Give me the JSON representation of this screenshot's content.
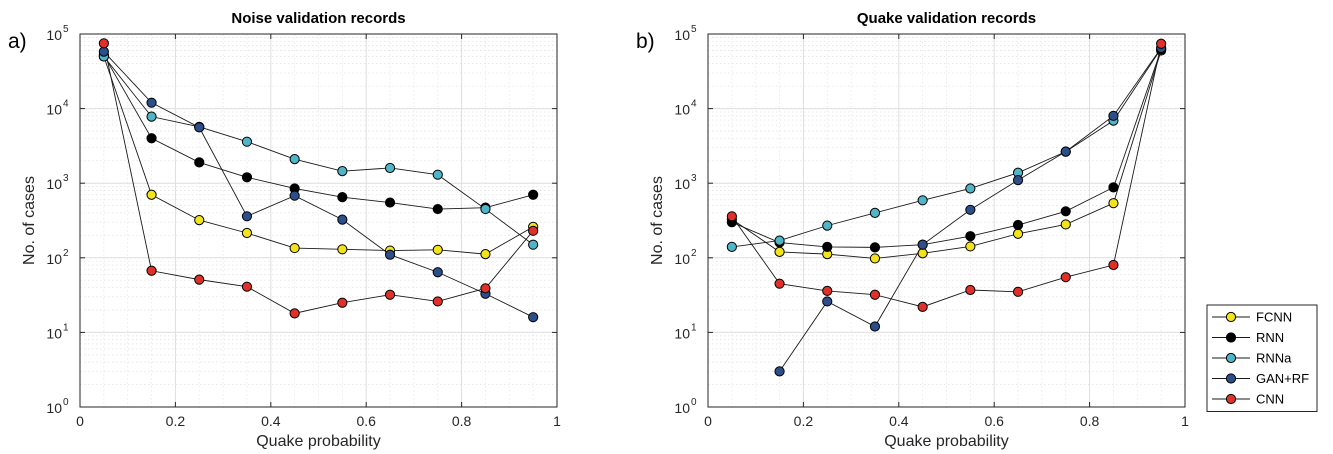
{
  "chart_data": [
    {
      "type": "line",
      "panel_label": "a)",
      "title": "Noise validation records",
      "xlabel": "Quake probability",
      "ylabel": "No. of cases",
      "xlim": [
        0,
        1
      ],
      "ylim": [
        1,
        100000
      ],
      "yscale": "log",
      "grid": true,
      "x": [
        0.05,
        0.15,
        0.25,
        0.35,
        0.45,
        0.55,
        0.65,
        0.75,
        0.85,
        0.95
      ],
      "series": [
        {
          "name": "FCNN",
          "color": "#f2e31a",
          "values": [
            50000,
            700,
            320,
            215,
            135,
            130,
            125,
            128,
            112,
            260
          ]
        },
        {
          "name": "RNN",
          "color": "#000000",
          "values": [
            52000,
            4000,
            1900,
            1200,
            850,
            650,
            550,
            450,
            470,
            700
          ]
        },
        {
          "name": "RNNa",
          "color": "#4fb5c8",
          "values": [
            50000,
            7800,
            5700,
            3600,
            2100,
            1450,
            1600,
            1300,
            450,
            150
          ]
        },
        {
          "name": "GAN+RF",
          "color": "#2c4f8c",
          "values": [
            58000,
            12000,
            5600,
            360,
            680,
            325,
            110,
            64,
            33,
            16
          ]
        },
        {
          "name": "CNN",
          "color": "#e0302a",
          "values": [
            75000,
            67,
            51,
            41,
            18,
            25,
            32,
            26,
            39,
            230
          ]
        }
      ]
    },
    {
      "type": "line",
      "panel_label": "b)",
      "title": "Quake validation records",
      "xlabel": "Quake probability",
      "ylabel": "No. of cases",
      "xlim": [
        0,
        1
      ],
      "ylim": [
        1,
        100000
      ],
      "yscale": "log",
      "grid": true,
      "x": [
        0.05,
        0.15,
        0.25,
        0.35,
        0.45,
        0.55,
        0.65,
        0.75,
        0.85,
        0.95
      ],
      "series": [
        {
          "name": "FCNN",
          "color": "#f2e31a",
          "values": [
            330,
            120,
            112,
            98,
            115,
            142,
            210,
            280,
            540,
            60000
          ]
        },
        {
          "name": "RNN",
          "color": "#000000",
          "values": [
            300,
            160,
            140,
            138,
            150,
            195,
            275,
            420,
            880,
            62000
          ]
        },
        {
          "name": "RNNa",
          "color": "#4fb5c8",
          "values": [
            140,
            170,
            270,
            400,
            590,
            850,
            1380,
            2650,
            6900,
            64000
          ]
        },
        {
          "name": "GAN+RF",
          "color": "#2c4f8c",
          "values": [
            null,
            3,
            26,
            12,
            150,
            440,
            1100,
            2650,
            8000,
            65000
          ]
        },
        {
          "name": "CNN",
          "color": "#e0302a",
          "values": [
            360,
            45,
            36,
            32,
            22,
            37,
            35,
            55,
            80,
            74000
          ]
        }
      ]
    }
  ],
  "xticks": [
    "0",
    "0.2",
    "0.4",
    "0.6",
    "0.8",
    "1"
  ],
  "yticks": [
    {
      "base": "10",
      "exp": "0"
    },
    {
      "base": "10",
      "exp": "1"
    },
    {
      "base": "10",
      "exp": "2"
    },
    {
      "base": "10",
      "exp": "3"
    },
    {
      "base": "10",
      "exp": "4"
    },
    {
      "base": "10",
      "exp": "5"
    }
  ],
  "legend": {
    "placement": "outside-right-bottom",
    "entries": [
      "FCNN",
      "RNN",
      "RNNa",
      "GAN+RF",
      "CNN"
    ]
  }
}
